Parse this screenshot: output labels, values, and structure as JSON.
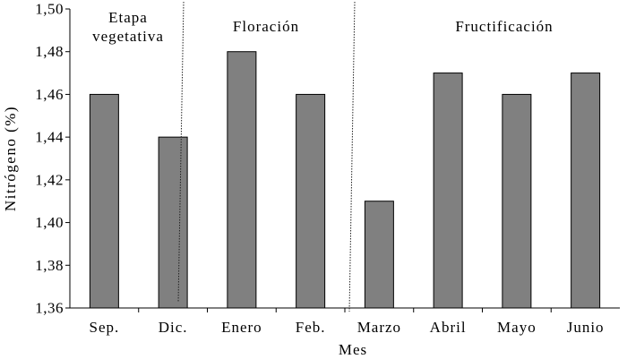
{
  "chart_data": {
    "type": "bar",
    "categories": [
      "Sep.",
      "Dic.",
      "Enero",
      "Feb.",
      "Marzo",
      "Abril",
      "Mayo",
      "Junio"
    ],
    "values": [
      1.46,
      1.44,
      1.48,
      1.46,
      1.41,
      1.47,
      1.46,
      1.47
    ],
    "xlabel": "Mes",
    "ylabel": "Nitrógeno (%)",
    "ylim": [
      1.36,
      1.5
    ],
    "yticks": [
      "1,36",
      "1,38",
      "1,40",
      "1,42",
      "1,44",
      "1,46",
      "1,48",
      "1,50"
    ],
    "bar_color": "#808080",
    "grid": false,
    "phases": [
      {
        "label_lines": [
          "Etapa",
          "vegetativa"
        ]
      },
      {
        "label_lines": [
          "Floración"
        ]
      },
      {
        "label_lines": [
          "Fructificación"
        ]
      }
    ]
  }
}
